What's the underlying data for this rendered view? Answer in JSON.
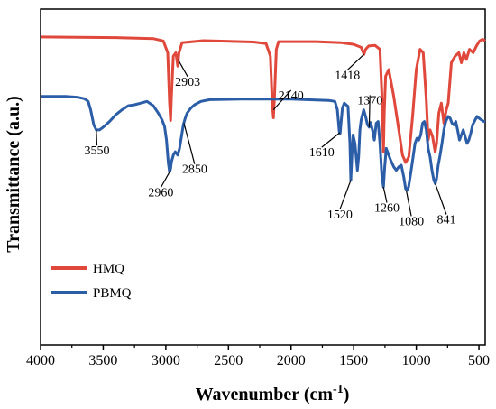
{
  "chart_data": {
    "type": "line",
    "xlabel": "Wavenumber (cm",
    "xlabel_sup": "-1",
    "xlabel_close": ")",
    "ylabel": "Transmittance (a.u.)",
    "xlim": [
      4000,
      450
    ],
    "x_reversed": true,
    "xticks": [
      4000,
      3500,
      3000,
      2500,
      2000,
      1500,
      1000,
      500
    ],
    "ylim": [
      0,
      1
    ],
    "yticks_labeled": false,
    "grid": false,
    "legend_position": "left-bottom",
    "series": [
      {
        "name": "HMQ",
        "color": "#e0483c",
        "points": [
          [
            4000,
            0.917
          ],
          [
            3700,
            0.916
          ],
          [
            3400,
            0.915
          ],
          [
            3100,
            0.912
          ],
          [
            3020,
            0.905
          ],
          [
            2985,
            0.87
          ],
          [
            2970,
            0.72
          ],
          [
            2962,
            0.668
          ],
          [
            2955,
            0.74
          ],
          [
            2940,
            0.86
          ],
          [
            2920,
            0.87
          ],
          [
            2905,
            0.83
          ],
          [
            2895,
            0.87
          ],
          [
            2870,
            0.9
          ],
          [
            2700,
            0.906
          ],
          [
            2300,
            0.902
          ],
          [
            2200,
            0.897
          ],
          [
            2165,
            0.86
          ],
          [
            2150,
            0.72
          ],
          [
            2141,
            0.676
          ],
          [
            2132,
            0.74
          ],
          [
            2118,
            0.88
          ],
          [
            2100,
            0.903
          ],
          [
            1800,
            0.903
          ],
          [
            1600,
            0.9
          ],
          [
            1500,
            0.895
          ],
          [
            1440,
            0.886
          ],
          [
            1418,
            0.865
          ],
          [
            1405,
            0.88
          ],
          [
            1380,
            0.89
          ],
          [
            1330,
            0.892
          ],
          [
            1290,
            0.88
          ],
          [
            1275,
            0.75
          ],
          [
            1262,
            0.575
          ],
          [
            1255,
            0.7
          ],
          [
            1245,
            0.8
          ],
          [
            1220,
            0.82
          ],
          [
            1180,
            0.74
          ],
          [
            1140,
            0.64
          ],
          [
            1110,
            0.565
          ],
          [
            1085,
            0.543
          ],
          [
            1060,
            0.56
          ],
          [
            1030,
            0.68
          ],
          [
            1000,
            0.82
          ],
          [
            970,
            0.88
          ],
          [
            945,
            0.87
          ],
          [
            920,
            0.73
          ],
          [
            905,
            0.61
          ],
          [
            890,
            0.64
          ],
          [
            870,
            0.62
          ],
          [
            850,
            0.575
          ],
          [
            838,
            0.6
          ],
          [
            820,
            0.69
          ],
          [
            800,
            0.72
          ],
          [
            780,
            0.66
          ],
          [
            760,
            0.7
          ],
          [
            745,
            0.72
          ],
          [
            720,
            0.84
          ],
          [
            690,
            0.86
          ],
          [
            660,
            0.87
          ],
          [
            640,
            0.84
          ],
          [
            620,
            0.87
          ],
          [
            600,
            0.85
          ],
          [
            575,
            0.88
          ],
          [
            545,
            0.87
          ],
          [
            520,
            0.89
          ],
          [
            495,
            0.905
          ],
          [
            470,
            0.91
          ],
          [
            450,
            0.905
          ]
        ]
      },
      {
        "name": "PBMQ",
        "color": "#2c5ea8",
        "points": [
          [
            4000,
            0.74
          ],
          [
            3800,
            0.74
          ],
          [
            3700,
            0.737
          ],
          [
            3650,
            0.733
          ],
          [
            3620,
            0.725
          ],
          [
            3600,
            0.7
          ],
          [
            3575,
            0.655
          ],
          [
            3555,
            0.64
          ],
          [
            3530,
            0.64
          ],
          [
            3500,
            0.648
          ],
          [
            3450,
            0.665
          ],
          [
            3400,
            0.685
          ],
          [
            3350,
            0.7
          ],
          [
            3300,
            0.712
          ],
          [
            3250,
            0.715
          ],
          [
            3200,
            0.72
          ],
          [
            3150,
            0.725
          ],
          [
            3100,
            0.712
          ],
          [
            3060,
            0.69
          ],
          [
            3030,
            0.67
          ],
          [
            3010,
            0.65
          ],
          [
            2995,
            0.61
          ],
          [
            2980,
            0.54
          ],
          [
            2970,
            0.515
          ],
          [
            2962,
            0.525
          ],
          [
            2955,
            0.545
          ],
          [
            2940,
            0.565
          ],
          [
            2925,
            0.575
          ],
          [
            2905,
            0.565
          ],
          [
            2890,
            0.585
          ],
          [
            2875,
            0.62
          ],
          [
            2860,
            0.655
          ],
          [
            2845,
            0.675
          ],
          [
            2830,
            0.69
          ],
          [
            2800,
            0.705
          ],
          [
            2770,
            0.715
          ],
          [
            2720,
            0.725
          ],
          [
            2650,
            0.73
          ],
          [
            2400,
            0.732
          ],
          [
            2000,
            0.732
          ],
          [
            1700,
            0.728
          ],
          [
            1650,
            0.725
          ],
          [
            1630,
            0.7
          ],
          [
            1615,
            0.635
          ],
          [
            1608,
            0.63
          ],
          [
            1600,
            0.665
          ],
          [
            1590,
            0.705
          ],
          [
            1575,
            0.72
          ],
          [
            1545,
            0.71
          ],
          [
            1530,
            0.6
          ],
          [
            1523,
            0.49
          ],
          [
            1516,
            0.55
          ],
          [
            1505,
            0.625
          ],
          [
            1490,
            0.6
          ],
          [
            1470,
            0.52
          ],
          [
            1460,
            0.56
          ],
          [
            1450,
            0.64
          ],
          [
            1440,
            0.67
          ],
          [
            1420,
            0.7
          ],
          [
            1405,
            0.68
          ],
          [
            1390,
            0.655
          ],
          [
            1376,
            0.648
          ],
          [
            1365,
            0.662
          ],
          [
            1350,
            0.64
          ],
          [
            1335,
            0.61
          ],
          [
            1320,
            0.66
          ],
          [
            1305,
            0.665
          ],
          [
            1290,
            0.6
          ],
          [
            1275,
            0.505
          ],
          [
            1262,
            0.47
          ],
          [
            1252,
            0.53
          ],
          [
            1240,
            0.585
          ],
          [
            1225,
            0.57
          ],
          [
            1205,
            0.55
          ],
          [
            1180,
            0.53
          ],
          [
            1160,
            0.52
          ],
          [
            1140,
            0.53
          ],
          [
            1120,
            0.535
          ],
          [
            1100,
            0.5
          ],
          [
            1085,
            0.465
          ],
          [
            1075,
            0.46
          ],
          [
            1062,
            0.47
          ],
          [
            1045,
            0.51
          ],
          [
            1025,
            0.56
          ],
          [
            1010,
            0.6
          ],
          [
            995,
            0.615
          ],
          [
            980,
            0.61
          ],
          [
            965,
            0.625
          ],
          [
            950,
            0.66
          ],
          [
            935,
            0.665
          ],
          [
            920,
            0.64
          ],
          [
            905,
            0.585
          ],
          [
            890,
            0.56
          ],
          [
            875,
            0.52
          ],
          [
            860,
            0.49
          ],
          [
            848,
            0.48
          ],
          [
            838,
            0.495
          ],
          [
            825,
            0.535
          ],
          [
            810,
            0.565
          ],
          [
            795,
            0.6
          ],
          [
            780,
            0.64
          ],
          [
            765,
            0.665
          ],
          [
            745,
            0.68
          ],
          [
            730,
            0.675
          ],
          [
            715,
            0.66
          ],
          [
            700,
            0.655
          ],
          [
            685,
            0.665
          ],
          [
            670,
            0.64
          ],
          [
            655,
            0.61
          ],
          [
            640,
            0.625
          ],
          [
            625,
            0.64
          ],
          [
            610,
            0.62
          ],
          [
            595,
            0.6
          ],
          [
            580,
            0.61
          ],
          [
            565,
            0.63
          ],
          [
            550,
            0.655
          ],
          [
            530,
            0.67
          ],
          [
            515,
            0.68
          ],
          [
            500,
            0.675
          ],
          [
            480,
            0.67
          ],
          [
            460,
            0.665
          ],
          [
            450,
            0.665
          ]
        ]
      }
    ],
    "annotations": [
      {
        "text": "2903",
        "x": 2903,
        "y": 0.85,
        "label_x": 2825,
        "label_y": 0.785
      },
      {
        "text": "2140",
        "x": 2141,
        "y": 0.7,
        "label_x": 2000,
        "label_y": 0.745
      },
      {
        "text": "1418",
        "x": 1418,
        "y": 0.865,
        "label_x": 1550,
        "label_y": 0.805
      },
      {
        "text": "3550",
        "x": 3555,
        "y": 0.64,
        "label_x": 3550,
        "label_y": 0.58
      },
      {
        "text": "2960",
        "x": 2962,
        "y": 0.52,
        "label_x": 3040,
        "label_y": 0.455
      },
      {
        "text": "2850",
        "x": 2855,
        "y": 0.66,
        "label_x": 2770,
        "label_y": 0.525
      },
      {
        "text": "1610",
        "x": 1610,
        "y": 0.632,
        "label_x": 1755,
        "label_y": 0.575
      },
      {
        "text": "1520",
        "x": 1523,
        "y": 0.49,
        "label_x": 1610,
        "label_y": 0.39
      },
      {
        "text": "1370",
        "x": 1376,
        "y": 0.648,
        "label_x": 1370,
        "label_y": 0.73
      },
      {
        "text": "1260",
        "x": 1262,
        "y": 0.47,
        "label_x": 1235,
        "label_y": 0.41
      },
      {
        "text": "1080",
        "x": 1080,
        "y": 0.46,
        "label_x": 1040,
        "label_y": 0.37
      },
      {
        "text": "841",
        "x": 848,
        "y": 0.48,
        "label_x": 760,
        "label_y": 0.375
      }
    ]
  }
}
